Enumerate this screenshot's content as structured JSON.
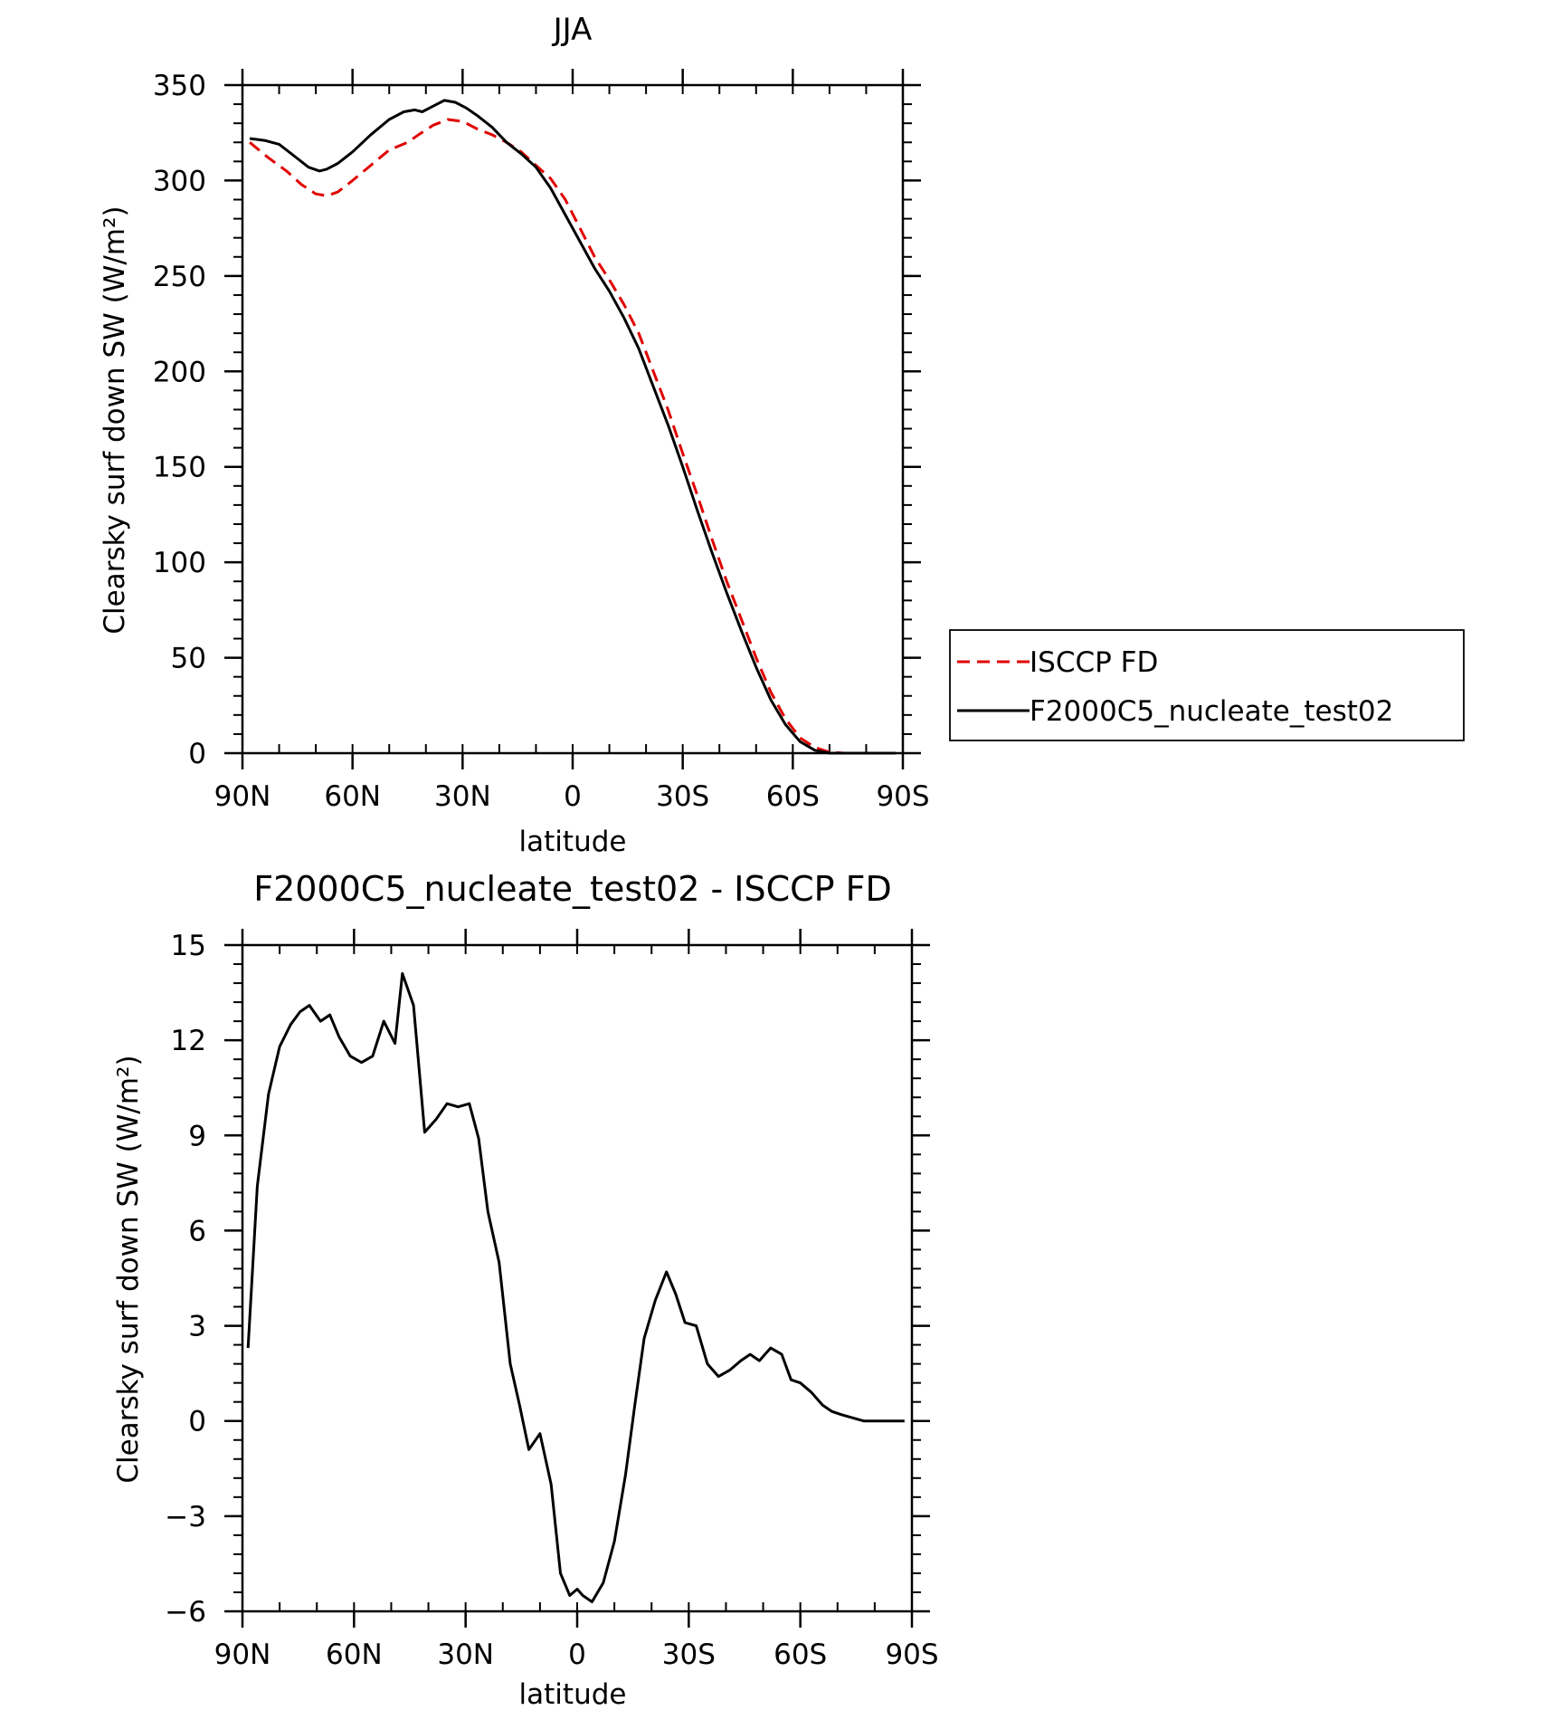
{
  "chart_data": [
    {
      "type": "line",
      "title": "JJA",
      "xlabel": "latitude",
      "ylabel": "Clearsky surf down SW (W/m²)",
      "xlim": [
        90,
        -90
      ],
      "ylim": [
        0,
        350
      ],
      "xticks": [
        90,
        60,
        30,
        0,
        -30,
        -60,
        -90
      ],
      "xtick_labels": [
        "90N",
        "60N",
        "30N",
        "0",
        "30S",
        "60S",
        "90S"
      ],
      "yticks": [
        0,
        50,
        100,
        150,
        200,
        250,
        300,
        350
      ],
      "ytick_labels": [
        "0",
        "50",
        "100",
        "150",
        "200",
        "250",
        "300",
        "350"
      ],
      "legend_position": "right",
      "series": [
        {
          "name": "ISCCP FD",
          "color": "#e00000",
          "dash": true,
          "x": [
            88,
            83,
            78,
            74,
            70,
            67,
            64,
            60,
            55,
            50,
            45,
            42,
            38,
            34,
            30,
            26,
            22,
            18,
            14,
            10,
            6,
            2,
            -2,
            -6,
            -10,
            -14,
            -18,
            -22,
            -26,
            -30,
            -34,
            -38,
            -42,
            -46,
            -50,
            -54,
            -58,
            -62,
            -66,
            -70,
            -74,
            -78,
            -82,
            -86,
            -88
          ],
          "y": [
            320,
            312,
            305,
            298,
            293,
            292,
            294,
            300,
            308,
            316,
            320,
            324,
            329,
            332,
            331,
            327,
            324,
            320,
            315,
            308,
            301,
            290,
            275,
            260,
            248,
            235,
            220,
            200,
            180,
            157,
            135,
            112,
            90,
            70,
            50,
            32,
            18,
            8,
            3,
            0.5,
            0,
            0,
            0,
            0,
            0
          ]
        },
        {
          "name": "F2000C5_nucleate_test02",
          "color": "#000000",
          "dash": false,
          "x": [
            88,
            84,
            80,
            76,
            72,
            69,
            67,
            64,
            60,
            55,
            50,
            46,
            43,
            41,
            38,
            35,
            32,
            29,
            26,
            22,
            18,
            14,
            10,
            6,
            2,
            -2,
            -6,
            -10,
            -14,
            -18,
            -22,
            -26,
            -30,
            -34,
            -38,
            -42,
            -46,
            -50,
            -54,
            -58,
            -62,
            -66,
            -70,
            -74,
            -78,
            -82,
            -86,
            -88
          ],
          "y": [
            322,
            321,
            319,
            313,
            307,
            305,
            306,
            309,
            315,
            324,
            332,
            336,
            337,
            336,
            339,
            342,
            341,
            338,
            334,
            328,
            320,
            314,
            307,
            296,
            282,
            268,
            254,
            242,
            228,
            212,
            192,
            172,
            150,
            127,
            105,
            84,
            64,
            45,
            28,
            15,
            6,
            1.5,
            0,
            0,
            0,
            0,
            0,
            0
          ]
        }
      ]
    },
    {
      "type": "line",
      "title": "F2000C5_nucleate_test02 - ISCCP FD",
      "xlabel": "latitude",
      "ylabel": "Clearsky surf down SW (W/m²)",
      "xlim": [
        90,
        -90
      ],
      "ylim": [
        -6,
        15
      ],
      "xticks": [
        90,
        60,
        30,
        0,
        -30,
        -60,
        -90
      ],
      "xtick_labels": [
        "90N",
        "60N",
        "30N",
        "0",
        "30S",
        "60S",
        "90S"
      ],
      "yticks": [
        -6,
        -3,
        0,
        3,
        6,
        9,
        12,
        15
      ],
      "ytick_labels": [
        "−6",
        "−3",
        "0",
        "3",
        "6",
        "9",
        "12",
        "15"
      ],
      "series": [
        {
          "color": "#000000",
          "dash": false,
          "x": [
            88.5,
            86,
            83,
            80,
            77,
            74.5,
            72,
            69,
            66.5,
            64,
            61,
            58,
            55,
            52,
            49,
            47,
            44,
            41,
            38,
            35,
            32,
            29,
            26.5,
            24,
            21,
            18,
            15.5,
            13,
            10,
            7,
            4.5,
            2,
            0,
            -1.5,
            -4,
            -7,
            -10,
            -13,
            -15.5,
            -18,
            -21,
            -24,
            -26.5,
            -29,
            -32,
            -35,
            -38,
            -41,
            -44,
            -46.5,
            -49,
            -52,
            -55,
            -57.5,
            -60,
            -63,
            -66,
            -68.5,
            -71,
            -74,
            -77,
            -80,
            -83,
            -85.5,
            -88
          ],
          "y": [
            2.3,
            7.4,
            10.3,
            11.8,
            12.5,
            12.9,
            13.1,
            12.6,
            12.8,
            12.1,
            11.5,
            11.3,
            11.5,
            12.6,
            11.9,
            14.1,
            13.1,
            9.1,
            9.5,
            10.0,
            9.9,
            10.0,
            8.9,
            6.6,
            5.0,
            1.8,
            0.5,
            -0.9,
            -0.4,
            -2.0,
            -4.8,
            -5.5,
            -5.3,
            -5.5,
            -5.7,
            -5.1,
            -3.8,
            -1.7,
            0.5,
            2.6,
            3.8,
            4.7,
            4.0,
            3.1,
            3.0,
            1.8,
            1.4,
            1.6,
            1.9,
            2.1,
            1.9,
            2.3,
            2.1,
            1.3,
            1.2,
            0.9,
            0.5,
            0.3,
            0.2,
            0.1,
            0.0,
            0.0,
            0.0,
            0.0,
            0.0
          ]
        }
      ]
    }
  ]
}
